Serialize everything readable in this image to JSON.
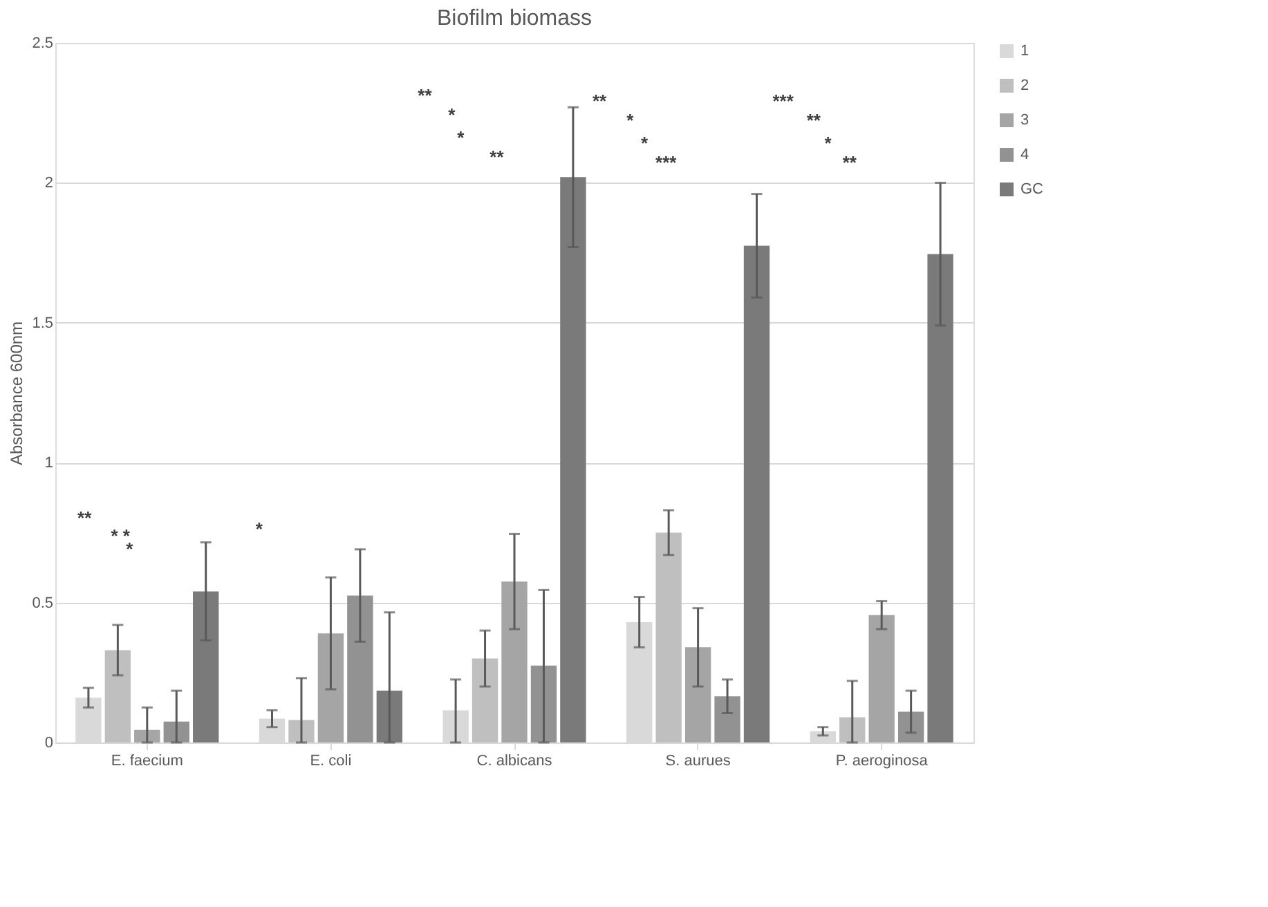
{
  "chart_data": {
    "type": "bar",
    "title": "Biofilm biomass",
    "ylabel": "Absorbance 600nm",
    "categories": [
      "E. faecium",
      "E. coli",
      "C. albicans",
      "S. aurues",
      "P. aeroginosa"
    ],
    "series": [
      {
        "name": "1",
        "color": "#d9d9d9",
        "values": [
          0.16,
          0.085,
          0.115,
          0.43,
          0.04
        ],
        "errors": [
          0.035,
          0.03,
          [
            0,
            0.225
          ],
          0.09,
          0.015
        ]
      },
      {
        "name": "2",
        "color": "#bfbfbf",
        "values": [
          0.33,
          0.08,
          0.3,
          0.75,
          0.09
        ],
        "errors": [
          0.09,
          [
            0,
            0.23
          ],
          0.1,
          0.08,
          [
            0,
            0.22
          ]
        ]
      },
      {
        "name": "3",
        "color": "#a5a5a5",
        "values": [
          0.045,
          0.39,
          0.575,
          0.34,
          0.455
        ],
        "errors": [
          [
            0,
            0.125
          ],
          0.2,
          0.17,
          0.14,
          0.05
        ]
      },
      {
        "name": "4",
        "color": "#929292",
        "values": [
          0.075,
          0.525,
          0.275,
          0.165,
          0.11
        ],
        "errors": [
          [
            0,
            0.185
          ],
          0.165,
          [
            0,
            0.545
          ],
          0.06,
          0.075
        ]
      },
      {
        "name": "GC",
        "color": "#7a7a7a",
        "values": [
          0.54,
          0.185,
          2.02,
          1.775,
          1.745
        ],
        "errors": [
          0.175,
          [
            0,
            0.465
          ],
          0.25,
          0.185,
          0.255
        ]
      }
    ],
    "ylim": [
      0,
      2.5
    ],
    "yticks": [
      0,
      0.5,
      1,
      1.5,
      2,
      2.5
    ],
    "grid": "y",
    "legend": "right",
    "annotations": [
      "**",
      "* *",
      "*",
      "*",
      "**",
      "*",
      "*",
      "**",
      "**",
      "*",
      "*",
      "***",
      "***",
      "**",
      "*",
      "**"
    ]
  }
}
